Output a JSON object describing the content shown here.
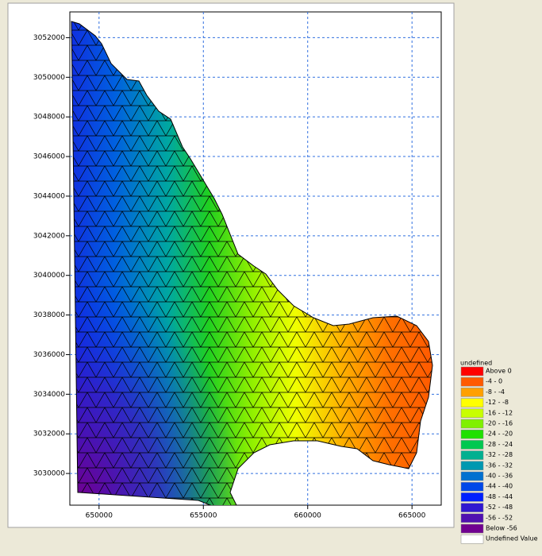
{
  "chart_data": {
    "type": "mesh",
    "xlim": [
      648600,
      666400
    ],
    "ylim": [
      3028400,
      3053300
    ],
    "xticks": [
      650000,
      655000,
      660000,
      665000
    ],
    "yticks": [
      3030000,
      3032000,
      3034000,
      3036000,
      3038000,
      3040000,
      3042000,
      3044000,
      3046000,
      3048000,
      3050000,
      3052000
    ],
    "grid": true,
    "legend": {
      "title": "undefined",
      "position": "lower right",
      "entries": [
        {
          "label": "Above  0",
          "color": "#ff0000"
        },
        {
          "label": "-4 -  0",
          "color": "#ff5a00"
        },
        {
          "label": "-8 - -4",
          "color": "#ffa000"
        },
        {
          "label": "-12 - -8",
          "color": "#ffff00"
        },
        {
          "label": "-16 - -12",
          "color": "#c8ff00"
        },
        {
          "label": "-20 - -16",
          "color": "#80f000"
        },
        {
          "label": "-24 - -20",
          "color": "#20e000"
        },
        {
          "label": "-28 - -24",
          "color": "#00c850"
        },
        {
          "label": "-32 - -28",
          "color": "#00b090"
        },
        {
          "label": "-36 - -32",
          "color": "#0098b0"
        },
        {
          "label": "-40 - -36",
          "color": "#0070d0"
        },
        {
          "label": "-44 - -40",
          "color": "#0048e8"
        },
        {
          "label": "-48 - -44",
          "color": "#0020ff"
        },
        {
          "label": "-52 - -48",
          "color": "#3018d0"
        },
        {
          "label": "-56 - -52",
          "color": "#5010b0"
        },
        {
          "label": "Below -56",
          "color": "#700090"
        },
        {
          "label": "Undefined Value",
          "color": "#ffffff"
        }
      ]
    }
  }
}
